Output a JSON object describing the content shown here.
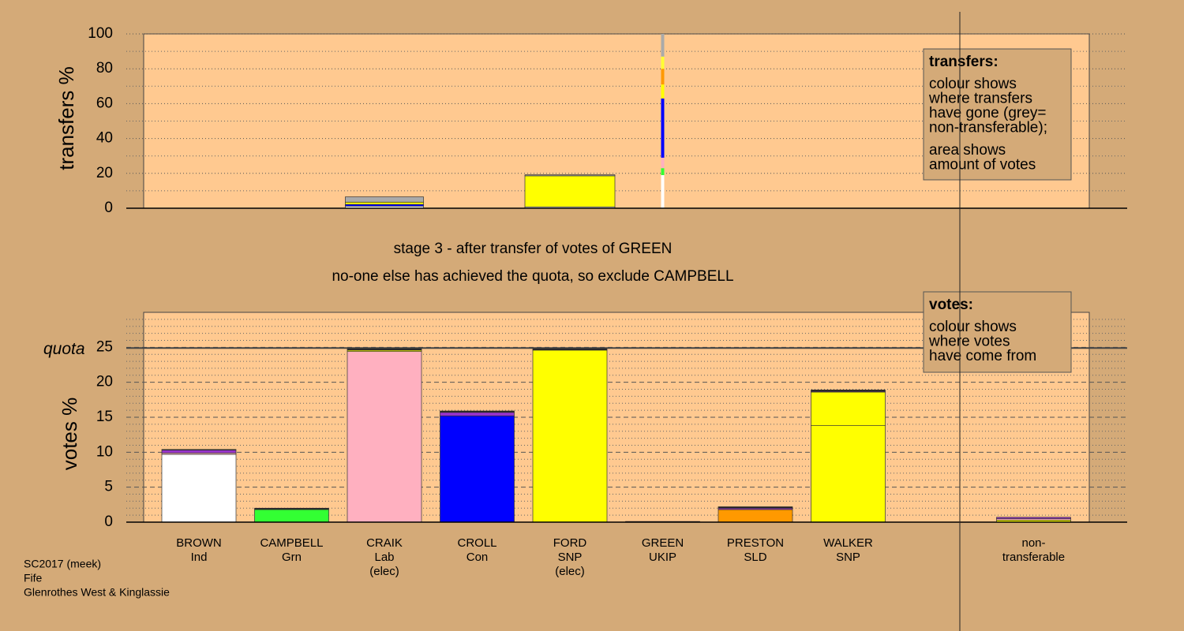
{
  "chart_data": [
    {
      "type": "stacked-bar",
      "ylabel": "transfers %",
      "ylim": [
        0,
        100
      ],
      "yticks": [
        0,
        20,
        40,
        60,
        80,
        100
      ],
      "yminor_ticks": [
        10,
        30,
        50,
        70,
        90
      ],
      "sizes": [
        null,
        null,
        0.87,
        null,
        1,
        0.035,
        null,
        null,
        null
      ],
      "series": [
        {
          "color": "#ffffff",
          "values": [
            null,
            null,
            1.2,
            null,
            0.8,
            19,
            null,
            null,
            null
          ]
        },
        {
          "color": "#33ff33",
          "values": [
            null,
            null,
            null,
            null,
            null,
            4,
            null,
            null,
            null
          ]
        },
        {
          "color": "#ffb0c0",
          "values": [
            null,
            null,
            null,
            null,
            null,
            6,
            null,
            null,
            null
          ]
        },
        {
          "color": "#0000ff",
          "values": [
            null,
            null,
            1,
            null,
            null,
            34,
            null,
            null,
            null
          ]
        },
        {
          "color": "#ffff00",
          "values": [
            null,
            null,
            1.3,
            null,
            17.8,
            8,
            null,
            null,
            null
          ]
        },
        {
          "color": "#ff9900",
          "values": [
            null,
            null,
            null,
            null,
            null,
            9,
            null,
            null,
            null
          ]
        },
        {
          "color": "#ffff33",
          "values": [
            null,
            null,
            null,
            null,
            null,
            7,
            null,
            null,
            null
          ]
        },
        {
          "color": "#aaaaaa",
          "values": [
            null,
            null,
            3,
            null,
            0.6,
            13,
            null,
            null,
            null
          ]
        }
      ],
      "legend": {
        "title": "transfers:",
        "lines": [
          [
            "colour shows",
            "where transfers",
            "have gone (grey=",
            "non-transferable);"
          ],
          [
            "area shows",
            "amount of votes"
          ]
        ]
      }
    },
    {
      "type": "stacked-bar",
      "ylabel": "votes %",
      "ylim": [
        0,
        30
      ],
      "yticks": [
        0,
        5,
        10,
        15,
        20,
        25
      ],
      "yminor_ticks": [
        1,
        2,
        3,
        4,
        6,
        7,
        8,
        9,
        11,
        12,
        13,
        14,
        16,
        17,
        18,
        19,
        21,
        22,
        23,
        24,
        26,
        27,
        28,
        29
      ],
      "quota": 24.9,
      "quota_label": "quota",
      "categories": [
        [
          "BROWN",
          "Ind"
        ],
        [
          "CAMPBELL",
          "Grn"
        ],
        [
          "CRAIK",
          "Lab",
          "(elec)"
        ],
        [
          "CROLL",
          "Con"
        ],
        [
          "FORD",
          "SNP",
          "(elec)"
        ],
        [
          "GREEN",
          "UKIP"
        ],
        [
          "PRESTON",
          "SLD"
        ],
        [
          "WALKER",
          "SNP"
        ],
        [
          "non-",
          "transferable"
        ]
      ],
      "series": [
        {
          "color": "#ffffff",
          "values": [
            9.7,
            null,
            null,
            null,
            null,
            null,
            null,
            null,
            null
          ]
        },
        {
          "color": "#33ff33",
          "values": [
            null,
            1.8,
            null,
            null,
            null,
            null,
            null,
            null,
            null
          ]
        },
        {
          "color": "#ffb0c0",
          "values": [
            null,
            null,
            24.4,
            null,
            null,
            null,
            null,
            null,
            null
          ]
        },
        {
          "color": "#0000ff",
          "values": [
            null,
            null,
            null,
            15.2,
            null,
            null,
            null,
            null,
            null
          ]
        },
        {
          "color": "#ffff00",
          "values": [
            null,
            null,
            null,
            null,
            24.6,
            null,
            null,
            13.8,
            null
          ]
        },
        {
          "color": "#ff9900",
          "values": [
            null,
            null,
            null,
            null,
            null,
            null,
            1.8,
            null,
            null
          ]
        },
        {
          "color": "#ffff00",
          "values": [
            null,
            null,
            0.2,
            null,
            null,
            null,
            null,
            4.8,
            0.3
          ]
        },
        {
          "color": "#ffb0c0",
          "values": [
            0.2,
            null,
            null,
            null,
            null,
            null,
            null,
            null,
            0.2
          ]
        },
        {
          "color": "#9933cc",
          "values": [
            0.4,
            null,
            null,
            0.5,
            null,
            0.1,
            0.2,
            0.1,
            0.2
          ]
        },
        {
          "color": "#222222",
          "values": [
            0.1,
            0.2,
            0.2,
            0.2,
            0.2,
            null,
            0.2,
            0.2,
            null
          ]
        }
      ],
      "legend": {
        "title": "votes:",
        "lines": [
          [
            "colour shows",
            "where votes",
            "have come from"
          ]
        ]
      }
    }
  ],
  "stage": [
    "stage 3 - after transfer of votes of GREEN",
    "no-one else has achieved the quota, so exclude CAMPBELL"
  ],
  "footer": [
    "SC2017 (meek)",
    "Fife",
    "Glenrothes West & Kinglassie"
  ]
}
